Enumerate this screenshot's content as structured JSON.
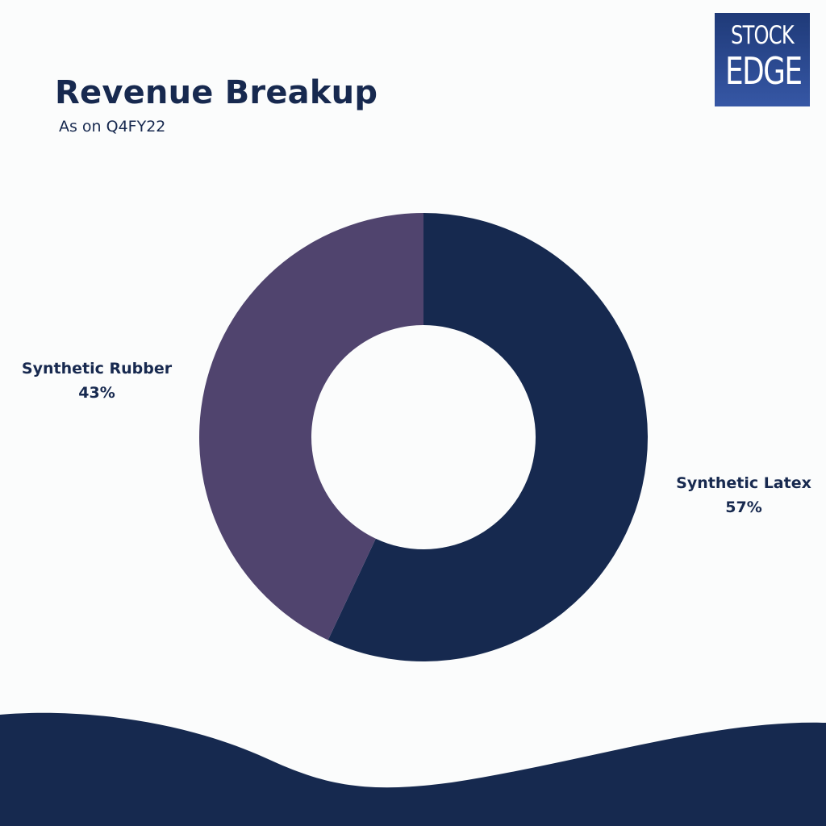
{
  "header": {
    "title": "Revenue Breakup",
    "subtitle": "As on Q4FY22"
  },
  "logo": {
    "line1": "STOCK",
    "line2": "EDGE"
  },
  "colors": {
    "accent": "#17294f",
    "synthetic_latex": "#16294f",
    "synthetic_rubber": "#50446e",
    "background": "#fbfcfc"
  },
  "chart_data": {
    "type": "pie",
    "donut": true,
    "title": "Revenue Breakup",
    "subtitle": "As on Q4FY22",
    "categories": [
      "Synthetic Latex",
      "Synthetic Rubber"
    ],
    "values": [
      57,
      43
    ],
    "labels": [
      "57%",
      "43%"
    ],
    "legend": "none"
  }
}
